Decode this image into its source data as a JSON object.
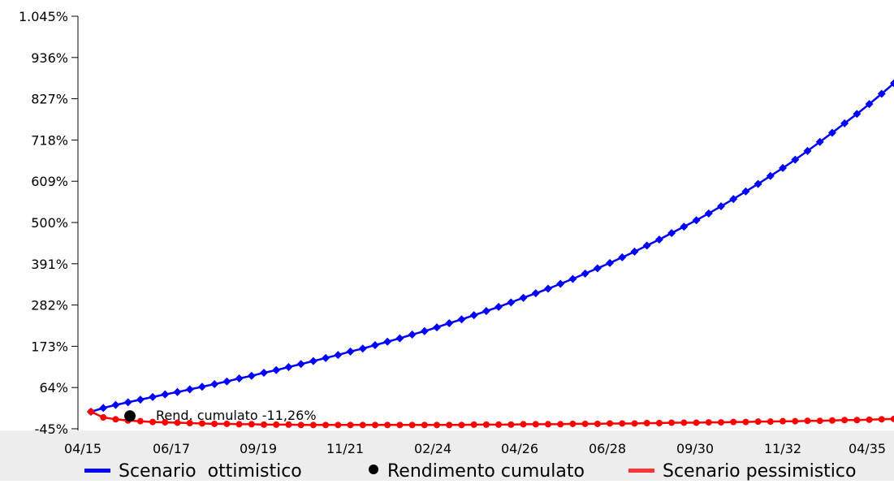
{
  "chart_data": {
    "type": "line",
    "title": "",
    "xlabel": "",
    "ylabel": "",
    "ylim": [
      -45,
      1045
    ],
    "yticks": [
      {
        "value": -45,
        "label": "-45%"
      },
      {
        "value": 64,
        "label": "64%"
      },
      {
        "value": 173,
        "label": "173%"
      },
      {
        "value": 282,
        "label": "282%"
      },
      {
        "value": 391,
        "label": "391%"
      },
      {
        "value": 500,
        "label": "500%"
      },
      {
        "value": 609,
        "label": "609%"
      },
      {
        "value": 718,
        "label": "718%"
      },
      {
        "value": 827,
        "label": "827%"
      },
      {
        "value": 936,
        "label": "936%"
      },
      {
        "value": 1045,
        "label": "1.045%"
      }
    ],
    "x_start": "04/15",
    "x_end": "04/35",
    "xticks": [
      "04/15",
      "06/17",
      "09/19",
      "11/21",
      "02/24",
      "04/26",
      "06/28",
      "09/30",
      "11/32",
      "04/35"
    ],
    "grid": false,
    "legend_position": "bottom",
    "series": [
      {
        "name": "Scenario  ottimistico",
        "color": "#0000ff",
        "marker": "diamond",
        "values": [
          0,
          10,
          18,
          25,
          32,
          39,
          46,
          52,
          59,
          66,
          73,
          80,
          88,
          95,
          103,
          110,
          118,
          126,
          134,
          142,
          150,
          159,
          167,
          176,
          185,
          194,
          204,
          213,
          223,
          234,
          244,
          255,
          266,
          277,
          289,
          301,
          313,
          325,
          338,
          351,
          365,
          379,
          393,
          408,
          423,
          439,
          455,
          472,
          489,
          506,
          524,
          543,
          562,
          582,
          602,
          623,
          644,
          666,
          689,
          713,
          737,
          762,
          787,
          813,
          840,
          868
        ]
      },
      {
        "name": "Scenario pessimistico",
        "color": "#ff0000",
        "marker": "circle",
        "values": [
          0,
          -15,
          -20,
          -23,
          -25,
          -27,
          -28,
          -29,
          -30,
          -31,
          -32,
          -32,
          -33,
          -33,
          -34,
          -34,
          -34,
          -35,
          -35,
          -35,
          -35,
          -35,
          -35,
          -35,
          -35,
          -35,
          -35,
          -35,
          -35,
          -35,
          -35,
          -34,
          -34,
          -34,
          -34,
          -33,
          -33,
          -33,
          -33,
          -32,
          -32,
          -32,
          -31,
          -31,
          -31,
          -30,
          -30,
          -29,
          -29,
          -29,
          -28,
          -28,
          -27,
          -27,
          -26,
          -26,
          -25,
          -25,
          -24,
          -24,
          -23,
          -22,
          -22,
          -21,
          -20,
          -19
        ]
      }
    ],
    "points": [
      {
        "name": "Rendimento cumulato",
        "color": "#000000",
        "index": 3,
        "value": -11.26
      }
    ],
    "annotations": [
      {
        "text": "Rend. cumulato -11,26%"
      }
    ],
    "legend": [
      {
        "label": "Scenario  ottimistico",
        "color": "#0000ff",
        "symbol": "line"
      },
      {
        "label": "Rendimento cumulato",
        "color": "#000000",
        "symbol": "dot"
      },
      {
        "label": "Scenario pessimistico",
        "color": "#ff3333",
        "symbol": "line"
      }
    ],
    "footer_bg": "#ecedec"
  }
}
